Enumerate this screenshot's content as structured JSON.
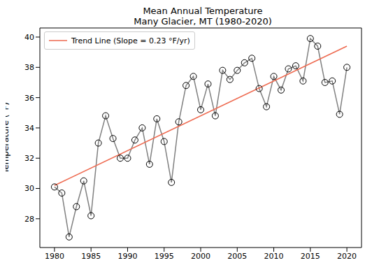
{
  "chart_data": {
    "type": "line",
    "title": "Mean Annual Temperature\nMany Glacier, MT (1980-2020)",
    "y_label": "Temperature (°F)",
    "x": [
      1980,
      1981,
      1982,
      1983,
      1984,
      1985,
      1986,
      1987,
      1988,
      1989,
      1990,
      1991,
      1992,
      1993,
      1994,
      1995,
      1996,
      1997,
      1998,
      1999,
      2000,
      2001,
      2002,
      2003,
      2004,
      2005,
      2006,
      2007,
      2008,
      2009,
      2010,
      2011,
      2012,
      2013,
      2014,
      2015,
      2016,
      2017,
      2018,
      2019,
      2020
    ],
    "series": [
      {
        "color": "#808080",
        "marker": "circle",
        "line_style": "solid",
        "values": [
          30.1,
          29.7,
          26.8,
          28.8,
          30.5,
          28.2,
          33.0,
          34.8,
          33.3,
          32.0,
          32.0,
          33.2,
          34.0,
          31.6,
          34.6,
          33.1,
          30.4,
          34.4,
          36.8,
          37.4,
          35.2,
          36.9,
          34.8,
          37.8,
          37.2,
          37.8,
          38.3,
          38.6,
          36.6,
          35.4,
          37.4,
          36.5,
          37.9,
          38.1,
          37.1,
          39.9,
          39.4,
          37.0,
          37.1,
          34.9,
          38.0
        ]
      },
      {
        "name": "Trend Line (Slope = 0.23 °F/yr)",
        "color": "#ee6a50",
        "marker": "none",
        "line_style": "solid",
        "x": [
          1980,
          2020
        ],
        "values": [
          30.2,
          39.4
        ]
      }
    ],
    "xlim": [
      1978,
      2022
    ],
    "ylim": [
      26.1,
      40.6
    ],
    "xticks": [
      1980,
      1985,
      1990,
      1995,
      2000,
      2005,
      2010,
      2015,
      2020
    ],
    "yticks": [
      28,
      30,
      32,
      34,
      36,
      38,
      40
    ],
    "grid": false,
    "legend": "upper left"
  }
}
